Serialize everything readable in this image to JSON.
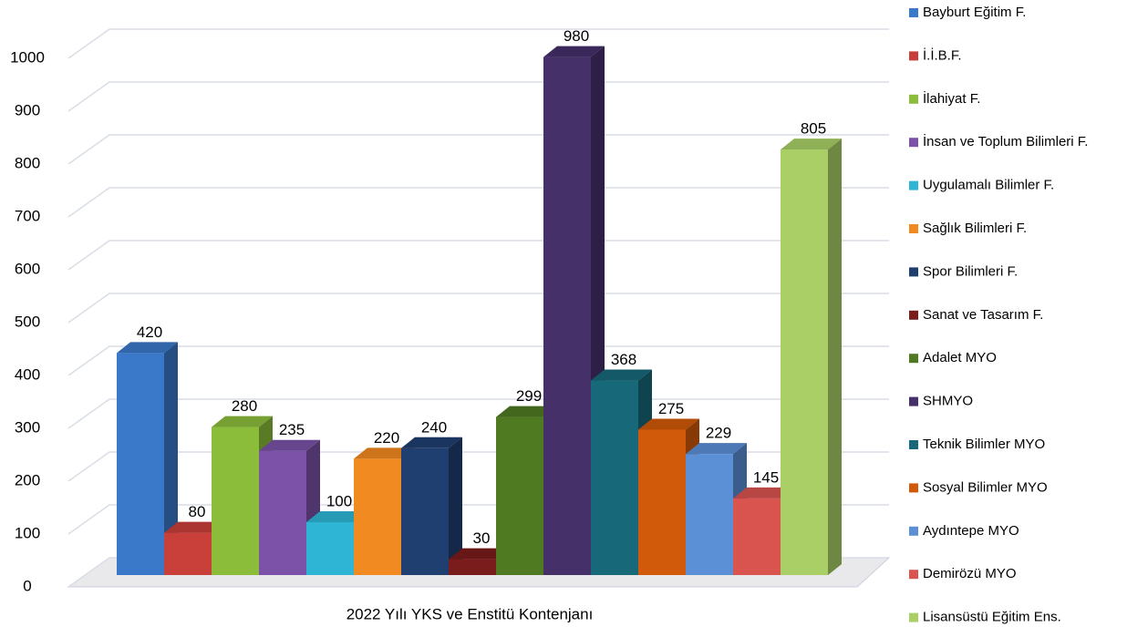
{
  "chart_data": {
    "type": "bar3d",
    "categories": [
      "2022 Yılı YKS ve Enstitü Kontenjanı"
    ],
    "ylim": [
      0,
      1000
    ],
    "yticks": [
      0,
      100,
      200,
      300,
      400,
      500,
      600,
      700,
      800,
      900,
      1000
    ],
    "grid": true,
    "legend": "right",
    "series": [
      {
        "name": "Bayburt Eğitim F.",
        "color": "#3a78c9",
        "values": [
          420
        ]
      },
      {
        "name": "İ.İ.B.F.",
        "color": "#c9403a",
        "values": [
          80
        ]
      },
      {
        "name": "İlahiyat F.",
        "color": "#8bbd3a",
        "values": [
          280
        ]
      },
      {
        "name": "İnsan ve Toplum Bilimleri F.",
        "color": "#7b52a8",
        "values": [
          235
        ]
      },
      {
        "name": "Uygulamalı Bilimler F.",
        "color": "#2eb5d6",
        "values": [
          100
        ]
      },
      {
        "name": "Sağlık Bilimleri F.",
        "color": "#f28a22",
        "values": [
          220
        ]
      },
      {
        "name": "Spor Bilimleri F.",
        "color": "#1f3f70",
        "values": [
          240
        ]
      },
      {
        "name": "Sanat ve Tasarım F.",
        "color": "#7b1c1c",
        "values": [
          30
        ]
      },
      {
        "name": "Adalet MYO",
        "color": "#4f7a22",
        "values": [
          299
        ]
      },
      {
        "name": "SHMYO",
        "color": "#45306a",
        "values": [
          980
        ]
      },
      {
        "name": "Teknik Bilimler MYO",
        "color": "#17697a",
        "values": [
          368
        ]
      },
      {
        "name": "Sosyal Bilimler MYO",
        "color": "#d05a0a",
        "values": [
          275
        ]
      },
      {
        "name": "Aydıntepe MYO",
        "color": "#5b8fd6",
        "values": [
          229
        ]
      },
      {
        "name": "Demirözü MYO",
        "color": "#d9534f",
        "values": [
          145
        ]
      },
      {
        "name": "Lisansüstü Eğitim Ens.",
        "color": "#a9cf66",
        "values": [
          805
        ]
      }
    ]
  }
}
